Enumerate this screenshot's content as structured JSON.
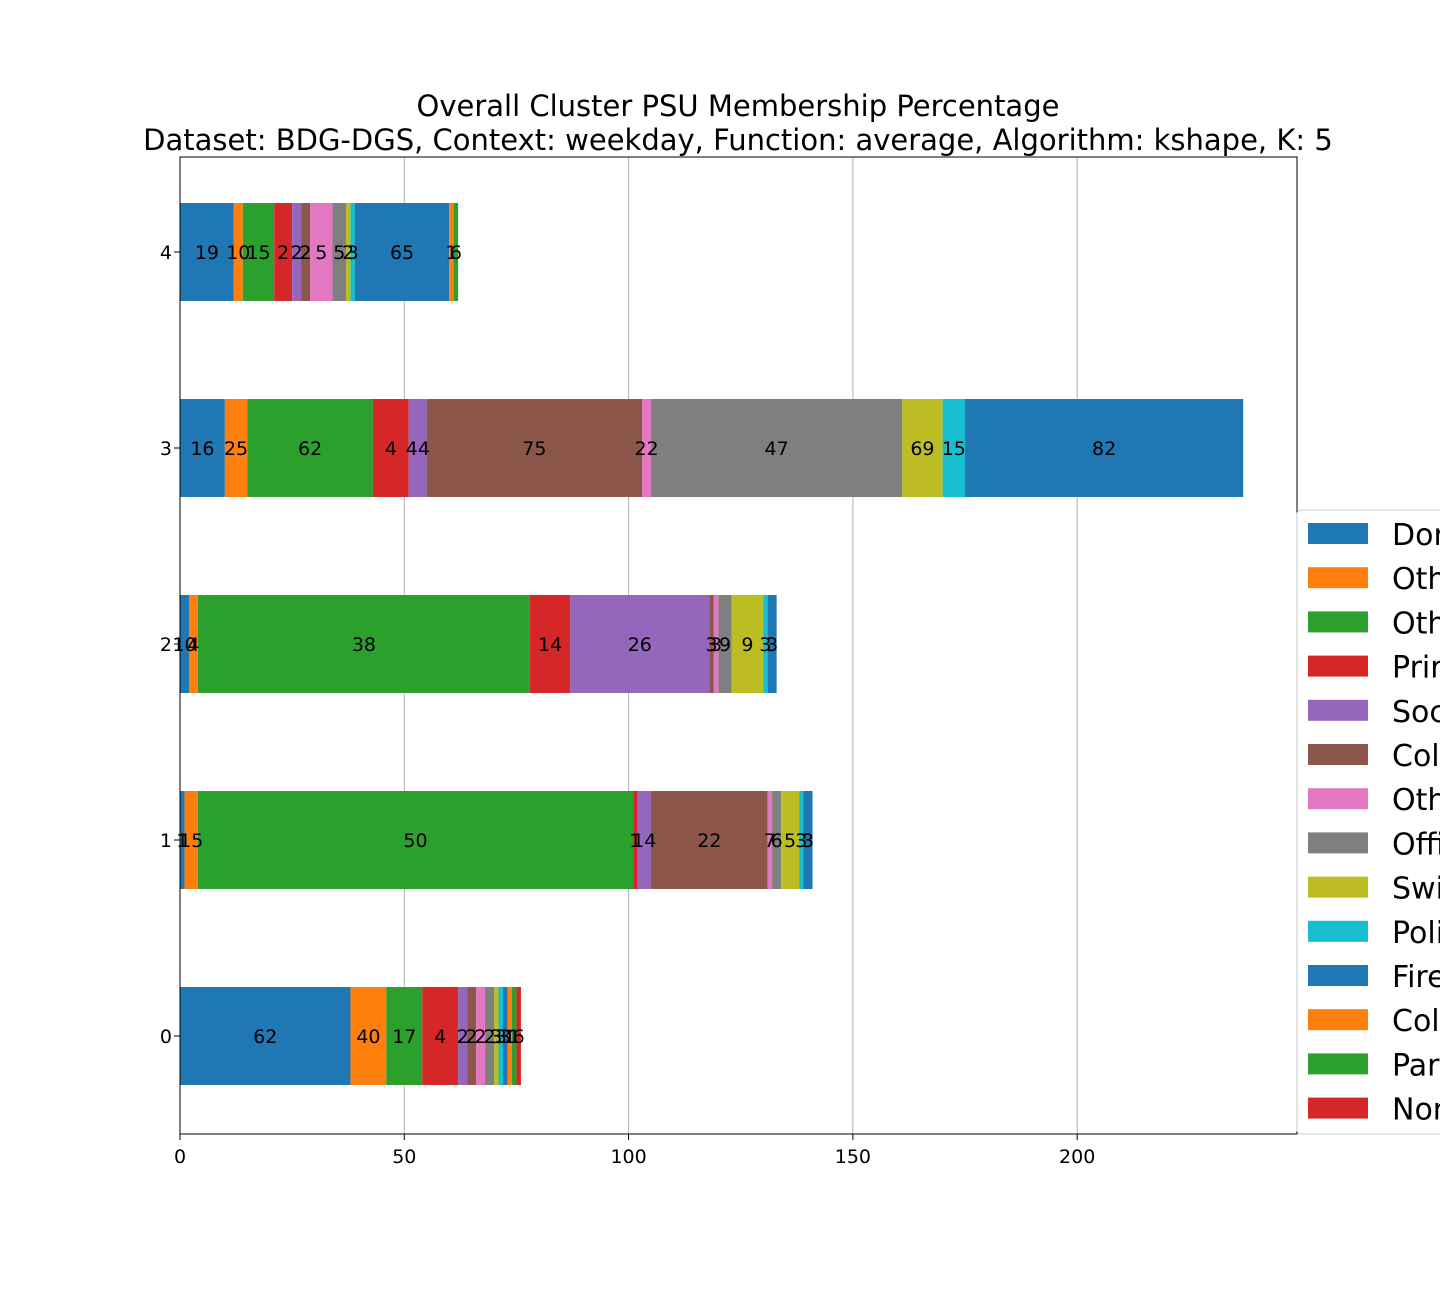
{
  "chart_data": {
    "type": "bar",
    "orientation": "horizontal",
    "stacked": true,
    "title": "Overall Cluster  PSU Membership Percentage",
    "subtitle": "Dataset: BDG-DGS, Context: weekday, Function: average, Algorithm: kshape, K: 5",
    "xlabel": "",
    "ylabel": "",
    "xlim": [
      0,
      249
    ],
    "xticks": [
      0,
      50,
      100,
      150,
      200
    ],
    "categories": [
      "0",
      "1",
      "2",
      "3",
      "4"
    ],
    "grid": "x",
    "legend_position": "right",
    "segment_colors": [
      "#1f77b4",
      "#ff7f0e",
      "#2ca02c",
      "#d62728",
      "#9467bd",
      "#8c564b",
      "#e377c2",
      "#7f7f7f",
      "#bcbd22",
      "#17becf",
      "#1f77b4",
      "#ff7f0e",
      "#2ca02c",
      "#d62728"
    ],
    "legend": [
      "Dor",
      "Oth",
      "Oth",
      "Prir",
      "Soc",
      "Col",
      "Oth",
      "Offi",
      "Swi",
      "Poli",
      "Fire",
      "Col",
      "Par",
      "Nor"
    ],
    "bars": [
      {
        "category": "0",
        "segments": [
          {
            "start": 0,
            "value": 38,
            "label": "62"
          },
          {
            "start": 38,
            "value": 8,
            "label": "40"
          },
          {
            "start": 46,
            "value": 8,
            "label": "17"
          },
          {
            "start": 54,
            "value": 8,
            "label": "4"
          },
          {
            "start": 62,
            "value": 2,
            "label": "2"
          },
          {
            "start": 64,
            "value": 2,
            "label": "2"
          },
          {
            "start": 66,
            "value": 2,
            "label": "2"
          },
          {
            "start": 68,
            "value": 2,
            "label": "2"
          },
          {
            "start": 70,
            "value": 1,
            "label": "3"
          },
          {
            "start": 71,
            "value": 1,
            "label": "3"
          },
          {
            "start": 72,
            "value": 1,
            "label": "3"
          },
          {
            "start": 73,
            "value": 1,
            "label": "1"
          },
          {
            "start": 74,
            "value": 1,
            "label": "1"
          },
          {
            "start": 75,
            "value": 1,
            "label": "6"
          }
        ]
      },
      {
        "category": "1",
        "segments": [
          {
            "start": 0,
            "value": 1,
            "label": "1"
          },
          {
            "start": 1,
            "value": 3,
            "label": "15"
          },
          {
            "start": 4,
            "value": 97,
            "label": "50"
          },
          {
            "start": 101,
            "value": 1,
            "label": "1"
          },
          {
            "start": 102,
            "value": 3,
            "label": "14"
          },
          {
            "start": 105,
            "value": 26,
            "label": "22"
          },
          {
            "start": 131,
            "value": 1,
            "label": "7"
          },
          {
            "start": 132,
            "value": 2,
            "label": "6"
          },
          {
            "start": 134,
            "value": 4,
            "label": "5"
          },
          {
            "start": 138,
            "value": 1,
            "label": "3"
          },
          {
            "start": 139,
            "value": 2,
            "label": "3"
          }
        ]
      },
      {
        "category": "2",
        "segments": [
          {
            "start": 0,
            "value": 2,
            "label": "10"
          },
          {
            "start": 2,
            "value": 2,
            "label": "4"
          },
          {
            "start": 4,
            "value": 74,
            "label": "38"
          },
          {
            "start": 78,
            "value": 9,
            "label": "14"
          },
          {
            "start": 87,
            "value": 31,
            "label": "26"
          },
          {
            "start": 118,
            "value": 1,
            "label": "3"
          },
          {
            "start": 119,
            "value": 1,
            "label": "3"
          },
          {
            "start": 120,
            "value": 3,
            "label": "9"
          },
          {
            "start": 123,
            "value": 7,
            "label": "9"
          },
          {
            "start": 130,
            "value": 1,
            "label": "3"
          },
          {
            "start": 131,
            "value": 2,
            "label": "3"
          }
        ]
      },
      {
        "category": "3",
        "segments": [
          {
            "start": 0,
            "value": 10,
            "label": "16"
          },
          {
            "start": 10,
            "value": 5,
            "label": "25"
          },
          {
            "start": 15,
            "value": 28,
            "label": "62"
          },
          {
            "start": 43,
            "value": 8,
            "label": "4"
          },
          {
            "start": 51,
            "value": 4,
            "label": "44"
          },
          {
            "start": 55,
            "value": 48,
            "label": "75"
          },
          {
            "start": 103,
            "value": 2,
            "label": "22"
          },
          {
            "start": 105,
            "value": 56,
            "label": "47"
          },
          {
            "start": 161,
            "value": 9,
            "label": "69"
          },
          {
            "start": 170,
            "value": 5,
            "label": "15"
          },
          {
            "start": 175,
            "value": 62,
            "label": "82"
          }
        ]
      },
      {
        "category": "4",
        "segments": [
          {
            "start": 0,
            "value": 12,
            "label": "19"
          },
          {
            "start": 12,
            "value": 2,
            "label": "10"
          },
          {
            "start": 14,
            "value": 7,
            "label": "15"
          },
          {
            "start": 21,
            "value": 4,
            "label": "2"
          },
          {
            "start": 25,
            "value": 2,
            "label": "2"
          },
          {
            "start": 27,
            "value": 2,
            "label": "2"
          },
          {
            "start": 29,
            "value": 5,
            "label": "5"
          },
          {
            "start": 34,
            "value": 3,
            "label": "5"
          },
          {
            "start": 37,
            "value": 1,
            "label": "2"
          },
          {
            "start": 38,
            "value": 1,
            "label": "3"
          },
          {
            "start": 39,
            "value": 21,
            "label": "65"
          },
          {
            "start": 60,
            "value": 1,
            "label": "1"
          },
          {
            "start": 61,
            "value": 1,
            "label": "6"
          }
        ]
      }
    ]
  }
}
